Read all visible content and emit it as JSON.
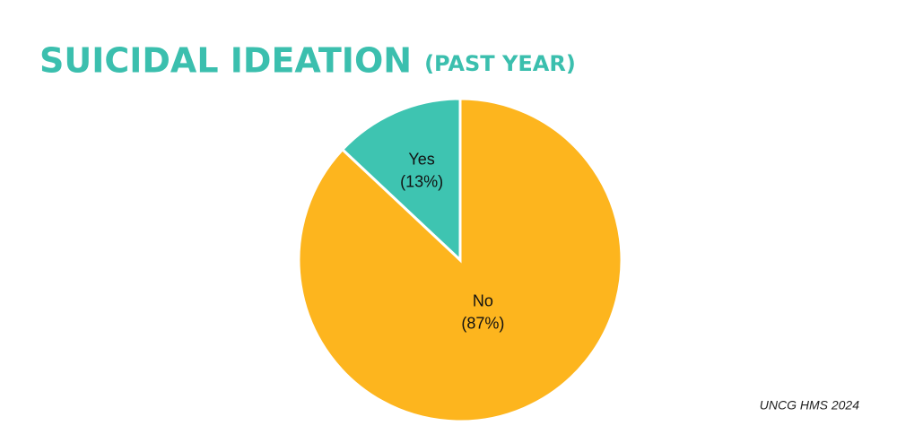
{
  "chart_data": {
    "type": "pie",
    "title": "SUICIDAL IDEATION",
    "subtitle": "(PAST YEAR)",
    "categories": [
      "Yes",
      "No"
    ],
    "values": [
      13,
      87
    ],
    "value_labels": [
      "(13%)",
      "(87%)"
    ],
    "colors": [
      "#3ec4b1",
      "#fdb51e"
    ],
    "source": "UNCG HMS 2024"
  }
}
